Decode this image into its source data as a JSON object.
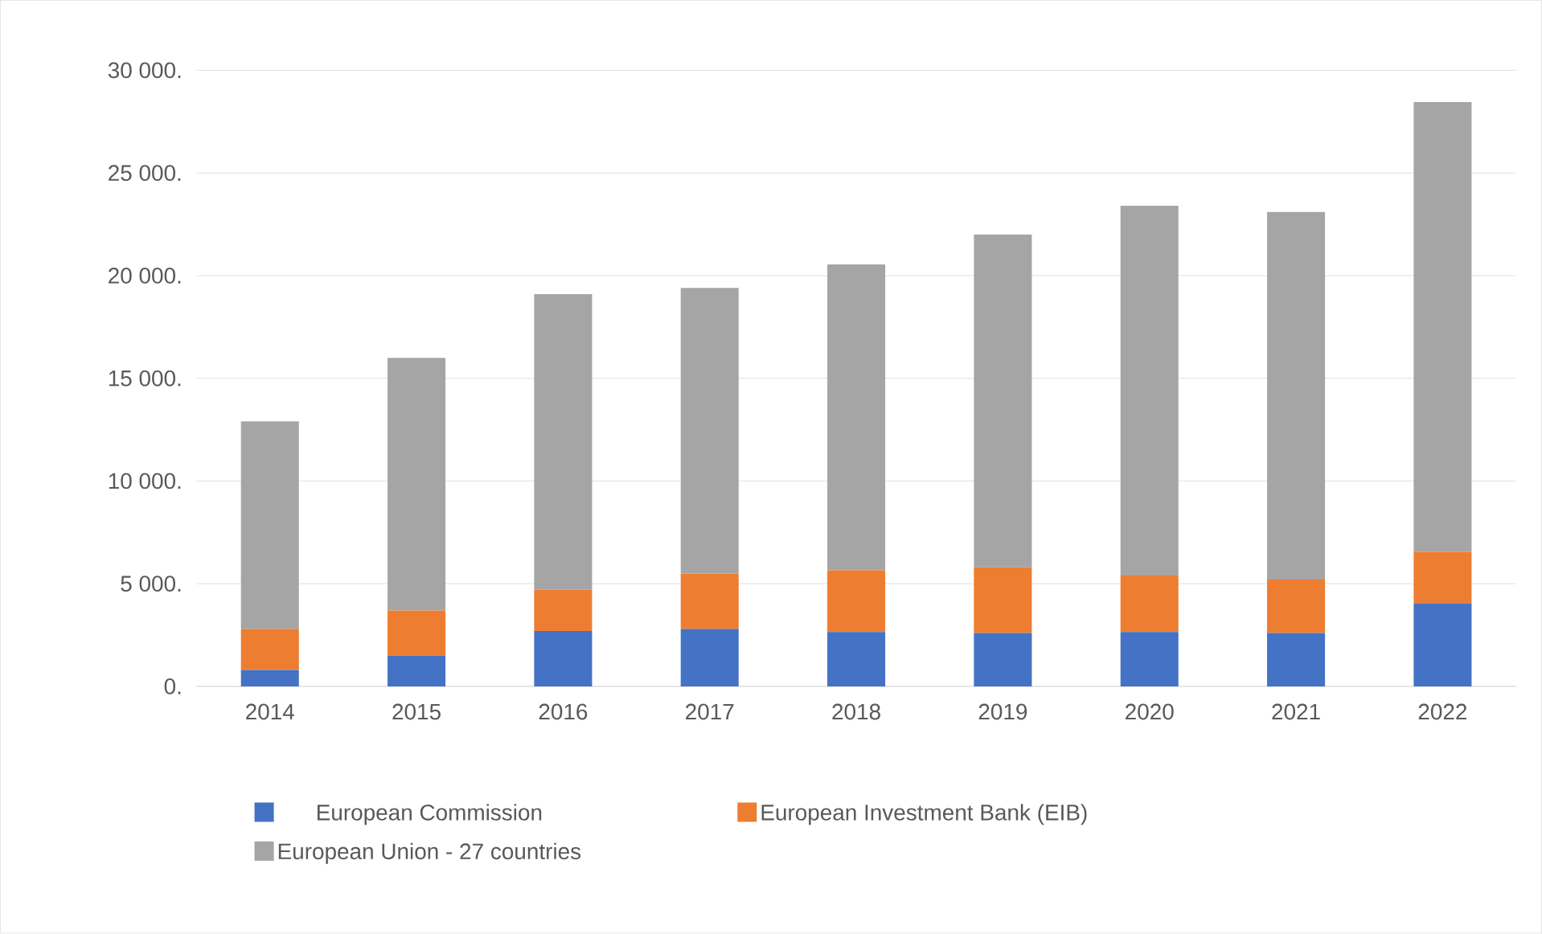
{
  "chart_data": {
    "type": "bar",
    "stacked": true,
    "categories": [
      "2014",
      "2015",
      "2016",
      "2017",
      "2018",
      "2019",
      "2020",
      "2021",
      "2022"
    ],
    "series": [
      {
        "name": "European Commission",
        "color": "#4472c4",
        "values": [
          800,
          1500,
          2700,
          2800,
          2650,
          2600,
          2650,
          2600,
          4050
        ]
      },
      {
        "name": "European Investment Bank (EIB)",
        "color": "#ed7d31",
        "values": [
          2000,
          2200,
          2000,
          2700,
          3000,
          3200,
          2750,
          2600,
          2500
        ]
      },
      {
        "name": "European Union - 27 countries",
        "color": "#a5a5a5",
        "values": [
          10100,
          12300,
          14400,
          13900,
          14900,
          16200,
          18000,
          17900,
          21900
        ]
      }
    ],
    "ylim": [
      0,
      30000
    ],
    "yticks": [
      {
        "value": 0,
        "label": "0."
      },
      {
        "value": 5000,
        "label": "5 000."
      },
      {
        "value": 10000,
        "label": "10 000."
      },
      {
        "value": 15000,
        "label": "15 000."
      },
      {
        "value": 20000,
        "label": "20 000."
      },
      {
        "value": 25000,
        "label": "25 000."
      },
      {
        "value": 30000,
        "label": "30 000."
      }
    ],
    "grid": "y",
    "legend": "bottom"
  }
}
